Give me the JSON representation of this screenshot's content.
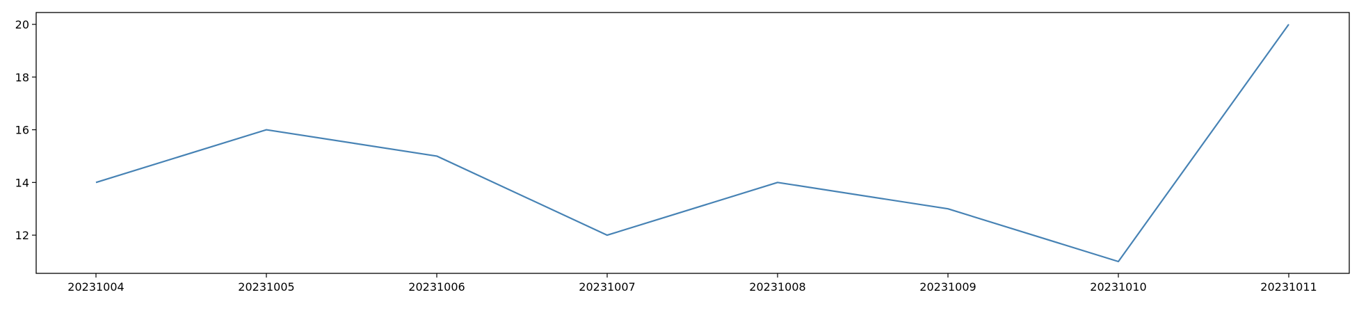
{
  "chart_data": {
    "type": "line",
    "title": "",
    "xlabel": "",
    "ylabel": "",
    "x": [
      "20231004",
      "20231005",
      "20231006",
      "20231007",
      "20231008",
      "20231009",
      "20231010",
      "20231011"
    ],
    "series": [
      {
        "values": [
          14,
          16,
          15,
          12,
          14,
          13,
          11,
          20
        ]
      }
    ],
    "ylim": [
      10.55,
      20.45
    ],
    "yticks": [
      12,
      14,
      16,
      18,
      20
    ],
    "grid": false,
    "line_color": "#4682b4"
  }
}
